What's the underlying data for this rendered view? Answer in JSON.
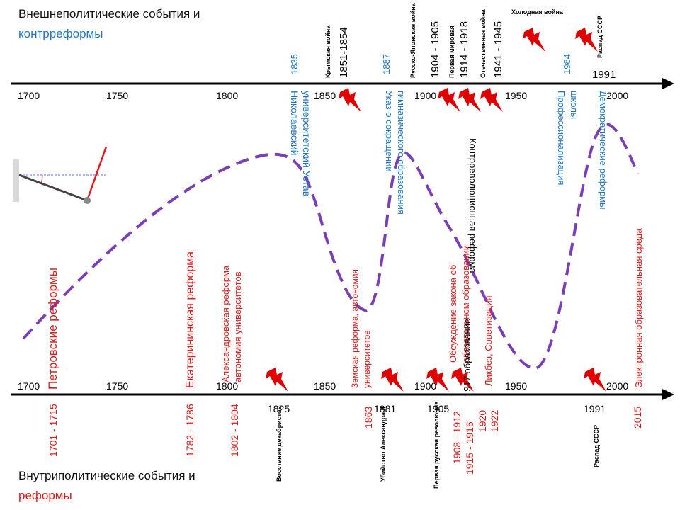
{
  "titles": {
    "foreign_line1": "Внешнеполитические события и",
    "foreign_line2": "контрреформы",
    "domestic_line1": "Внутриполитические события и",
    "domestic_line2": "реформы"
  },
  "axis_ticks": [
    "1700",
    "1750",
    "1800",
    "1850",
    "1900",
    "1950",
    "2000"
  ],
  "top_events": [
    {
      "label": "Крымская война",
      "sub": "1851-1854"
    },
    {
      "label": "Русско-Японская война",
      "sub": "1904 - 1905"
    },
    {
      "label": "Первая мировая",
      "sub": "1914 - 1918"
    },
    {
      "label": "Отечественная война",
      "sub": "1941 - 1945"
    },
    {
      "label": "Холодная война",
      "sub": ""
    },
    {
      "label": "Распад СССР",
      "sub": "1991"
    }
  ],
  "top_counterreforms": [
    {
      "year": "1835",
      "text1": "Николаевский",
      "text2": "университетский Устав"
    },
    {
      "year": "1887",
      "text1": "Указ о сокращении",
      "text2": "гимназического образования"
    },
    {
      "year": "1984",
      "text1": "Профессионализация",
      "text2": "школы"
    },
    {
      "year": "",
      "text1": "Демократические реформы",
      "text2": ""
    }
  ],
  "top_black_note": "Контрреволюционная реформа",
  "reforms": [
    {
      "label": "Петровские реформы",
      "years": "1701 - 1715"
    },
    {
      "label": "Екатерининская реформа",
      "years": "1782 - 1786"
    },
    {
      "label1": "Александровская реформа",
      "label2": "автономия университетов",
      "years": "1802 - 1804"
    },
    {
      "label1": "Земская реформа, автономия",
      "label2": "университетов",
      "years": "1863"
    },
    {
      "label1": "Обсуждение закона об",
      "label2": "обязательном образовании",
      "years": "1908 - 1912"
    },
    {
      "label": "1917 образование",
      "years": "1915 - 1916"
    },
    {
      "label": "Ликбез, Советизация",
      "years": "1920"
    },
    {
      "label": "Электронная образовательная среда",
      "years": "2015"
    }
  ],
  "extra_years": [
    "1922"
  ],
  "bottom_events": [
    {
      "year": "1825",
      "label": "Восстание декабристов"
    },
    {
      "year": "1881",
      "label": "Убийство Александра II"
    },
    {
      "year": "1905",
      "label": "Первая русская революция"
    },
    {
      "year": "1991",
      "label": "Распад СССР"
    }
  ],
  "colors": {
    "axis": "#000000",
    "foreign": "#1f77c8",
    "reform": "#e01b1b",
    "curve": "#7b3fb5",
    "bolt": "#e00000"
  }
}
